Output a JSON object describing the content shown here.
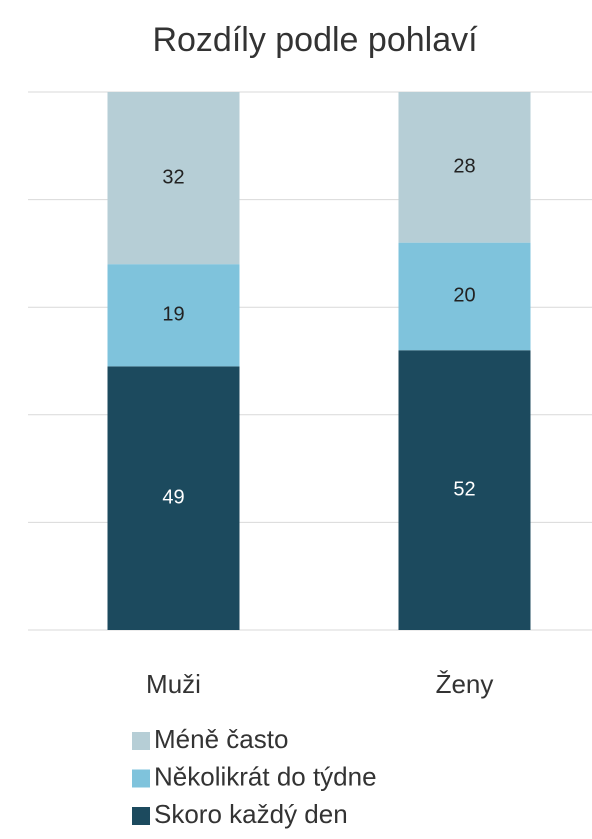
{
  "chart_data": {
    "type": "stacked_bar",
    "title": "Rozdíly podle pohlaví",
    "categories": [
      "Muži",
      "Ženy"
    ],
    "series": [
      {
        "name": "Skoro každý den",
        "color": "#1c4a5e",
        "values": [
          49,
          52
        ]
      },
      {
        "name": "Několikrát do týdne",
        "color": "#7fc3dc",
        "values": [
          19,
          20
        ]
      },
      {
        "name": "Méně často",
        "color": "#b6ced6",
        "values": [
          32,
          28
        ]
      }
    ],
    "ylim": [
      0,
      100
    ],
    "yticks": [
      0,
      20,
      40,
      60,
      80,
      100
    ],
    "grid": true
  }
}
